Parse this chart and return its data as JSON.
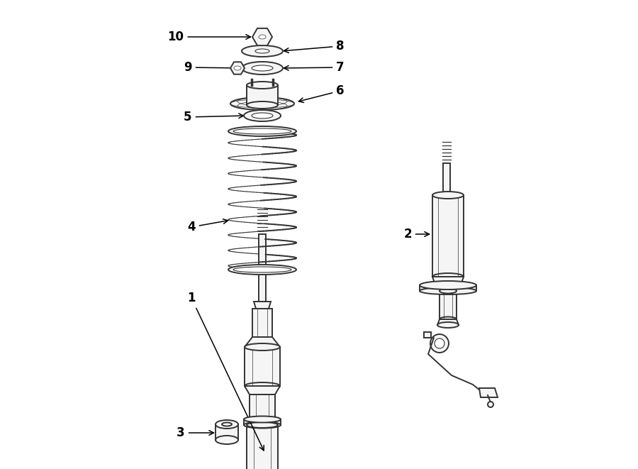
{
  "bg_color": "#ffffff",
  "lc": "#333333",
  "lc2": "#555555",
  "fig_width": 9.0,
  "fig_height": 6.61,
  "lw": 1.4,
  "lw_thin": 0.8,
  "fc": "#f5f5f5",
  "fc2": "#e8e8e8",
  "fc_white": "#ffffff"
}
